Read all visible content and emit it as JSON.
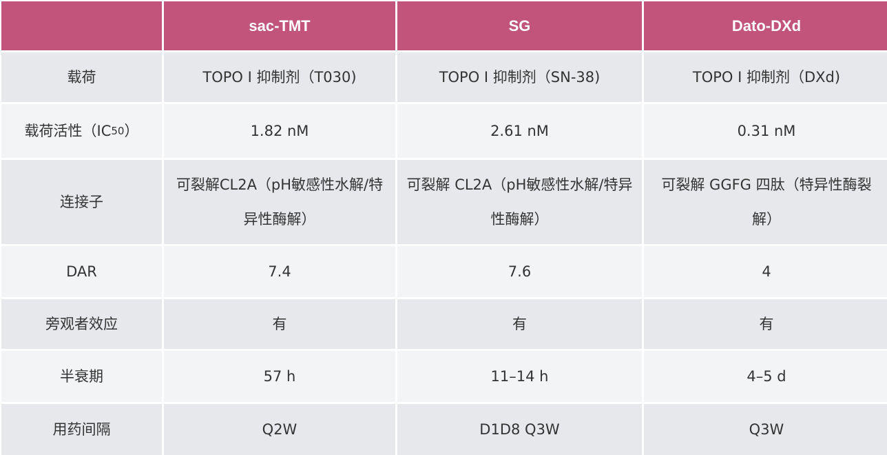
{
  "header": {
    "corner": "",
    "columns": [
      "sac-TMT",
      "SG",
      "Dato-DXd"
    ]
  },
  "colors": {
    "header_bg": "#c2547c",
    "row_odd": "#e7e8eb",
    "row_even": "#f3f4f6"
  },
  "rows": [
    {
      "label": "载荷",
      "values": [
        "TOPO Ⅰ 抑制剂（T030)",
        "TOPO Ⅰ 抑制剂（SN-38)",
        "TOPO Ⅰ 抑制剂（DXd)"
      ]
    },
    {
      "label": "载荷活性（IC",
      "label_sub": "50",
      "label_end": "）",
      "values": [
        "1.82 nM",
        "2.61 nM",
        "0.31 nM"
      ]
    },
    {
      "label": "连接子",
      "values": [
        "可裂解CL2A（pH敏感性水解/特异性酶解）",
        "可裂解 CL2A（pH敏感性水解/特异性酶解）",
        "可裂解 GGFG 四肽（特异性酶裂解）"
      ]
    },
    {
      "label": "DAR",
      "values": [
        "7.4",
        "7.6",
        "4"
      ]
    },
    {
      "label": "旁观者效应",
      "values": [
        "有",
        "有",
        "有"
      ]
    },
    {
      "label": "半衰期",
      "values": [
        "57 h",
        "11–14 h",
        "4–5 d"
      ]
    },
    {
      "label": "用药间隔",
      "values": [
        "Q2W",
        "D1D8 Q3W",
        "Q3W"
      ]
    }
  ]
}
